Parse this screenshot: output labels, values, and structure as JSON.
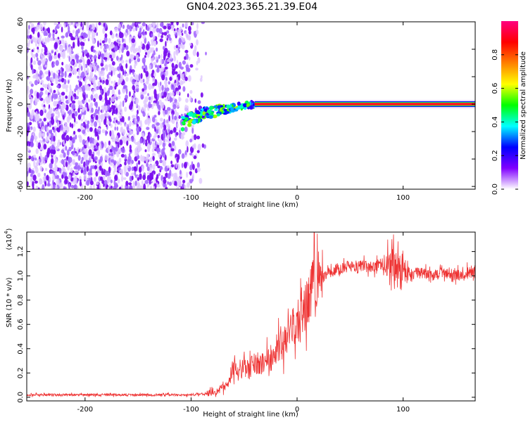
{
  "title": "GN04.2023.365.21.39.E04",
  "chart_data": [
    {
      "type": "heatmap",
      "title": "GN04.2023.365.21.39.E04",
      "xlabel": "Height of straight line (km)",
      "ylabel": "Frequency (Hz)",
      "xlim": [
        -255,
        168
      ],
      "ylim": [
        -62,
        60
      ],
      "xticks": [
        -200,
        -100,
        0,
        100
      ],
      "xtick_labels": [
        "-200",
        "-100",
        "0",
        "100"
      ],
      "yticks": [
        -60,
        -40,
        -20,
        0,
        20,
        40,
        60
      ],
      "ytick_labels": [
        "-60",
        "-40",
        "-20",
        "0",
        "20",
        "40",
        "60"
      ],
      "grid": false,
      "signal_band": {
        "frequency": 0,
        "x_start": -40,
        "x_end": 168,
        "amplitude": 1.0
      },
      "onset_region": {
        "x_start": -108,
        "x_end": -40,
        "frequency_start": -14,
        "frequency_end": 0,
        "amplitude": 0.5
      },
      "noise_region": {
        "x_start": -255,
        "x_end": -85,
        "frequency_range": [
          -62,
          60
        ],
        "amplitude_range": [
          0.05,
          0.2
        ]
      },
      "colorbar": {
        "label": "Normalized spectral amplitude",
        "range": [
          0,
          1
        ],
        "ticks": [
          0.0,
          0.2,
          0.4,
          0.6,
          0.8
        ],
        "tick_labels": [
          "0.0",
          "0.2",
          "0.4",
          "0.6",
          "0.8"
        ],
        "colors": [
          "#ffffff",
          "#8000ff",
          "#0000ff",
          "#00ffff",
          "#00ff00",
          "#ffff00",
          "#ff8000",
          "#ff0000",
          "#ff0080"
        ]
      }
    },
    {
      "type": "line",
      "xlabel": "Height of straight line (km)",
      "ylabel": "SNR (10 * v/v)",
      "y_multiplier_label": "(x10",
      "y_multiplier_exponent": "4",
      "y_multiplier_close": ")",
      "xlim": [
        -255,
        168
      ],
      "ylim": [
        -0.03,
        1.36
      ],
      "xticks": [
        -200,
        -100,
        0,
        100
      ],
      "xtick_labels": [
        "-200",
        "-100",
        "0",
        "100"
      ],
      "yticks": [
        0.0,
        0.2,
        0.4,
        0.6,
        0.8,
        1.0,
        1.2
      ],
      "ytick_labels": [
        "0.0",
        "0.2",
        "0.4",
        "0.6",
        "0.8",
        "1.0",
        "1.2"
      ],
      "grid": false,
      "series": [
        {
          "color": "#ee3333",
          "x": [
            -255,
            -200,
            -150,
            -100,
            -85,
            -75,
            -65,
            -60,
            -55,
            -50,
            -45,
            -40,
            -35,
            -30,
            -25,
            -20,
            -15,
            -10,
            -5,
            0,
            5,
            10,
            15,
            20,
            25,
            30,
            35,
            40,
            50,
            60,
            70,
            80,
            85,
            90,
            95,
            100,
            110,
            120,
            130,
            140,
            150,
            160,
            168
          ],
          "values": [
            0.02,
            0.02,
            0.02,
            0.02,
            0.03,
            0.05,
            0.12,
            0.25,
            0.18,
            0.26,
            0.22,
            0.3,
            0.26,
            0.3,
            0.32,
            0.4,
            0.42,
            0.5,
            0.55,
            0.62,
            0.72,
            0.8,
            0.88,
            0.95,
            1.0,
            1.02,
            1.05,
            1.06,
            1.08,
            1.08,
            1.07,
            1.1,
            1.06,
            1.05,
            1.04,
            1.04,
            1.02,
            1.02,
            1.01,
            1.02,
            1.0,
            1.02,
            1.03
          ]
        }
      ]
    }
  ]
}
